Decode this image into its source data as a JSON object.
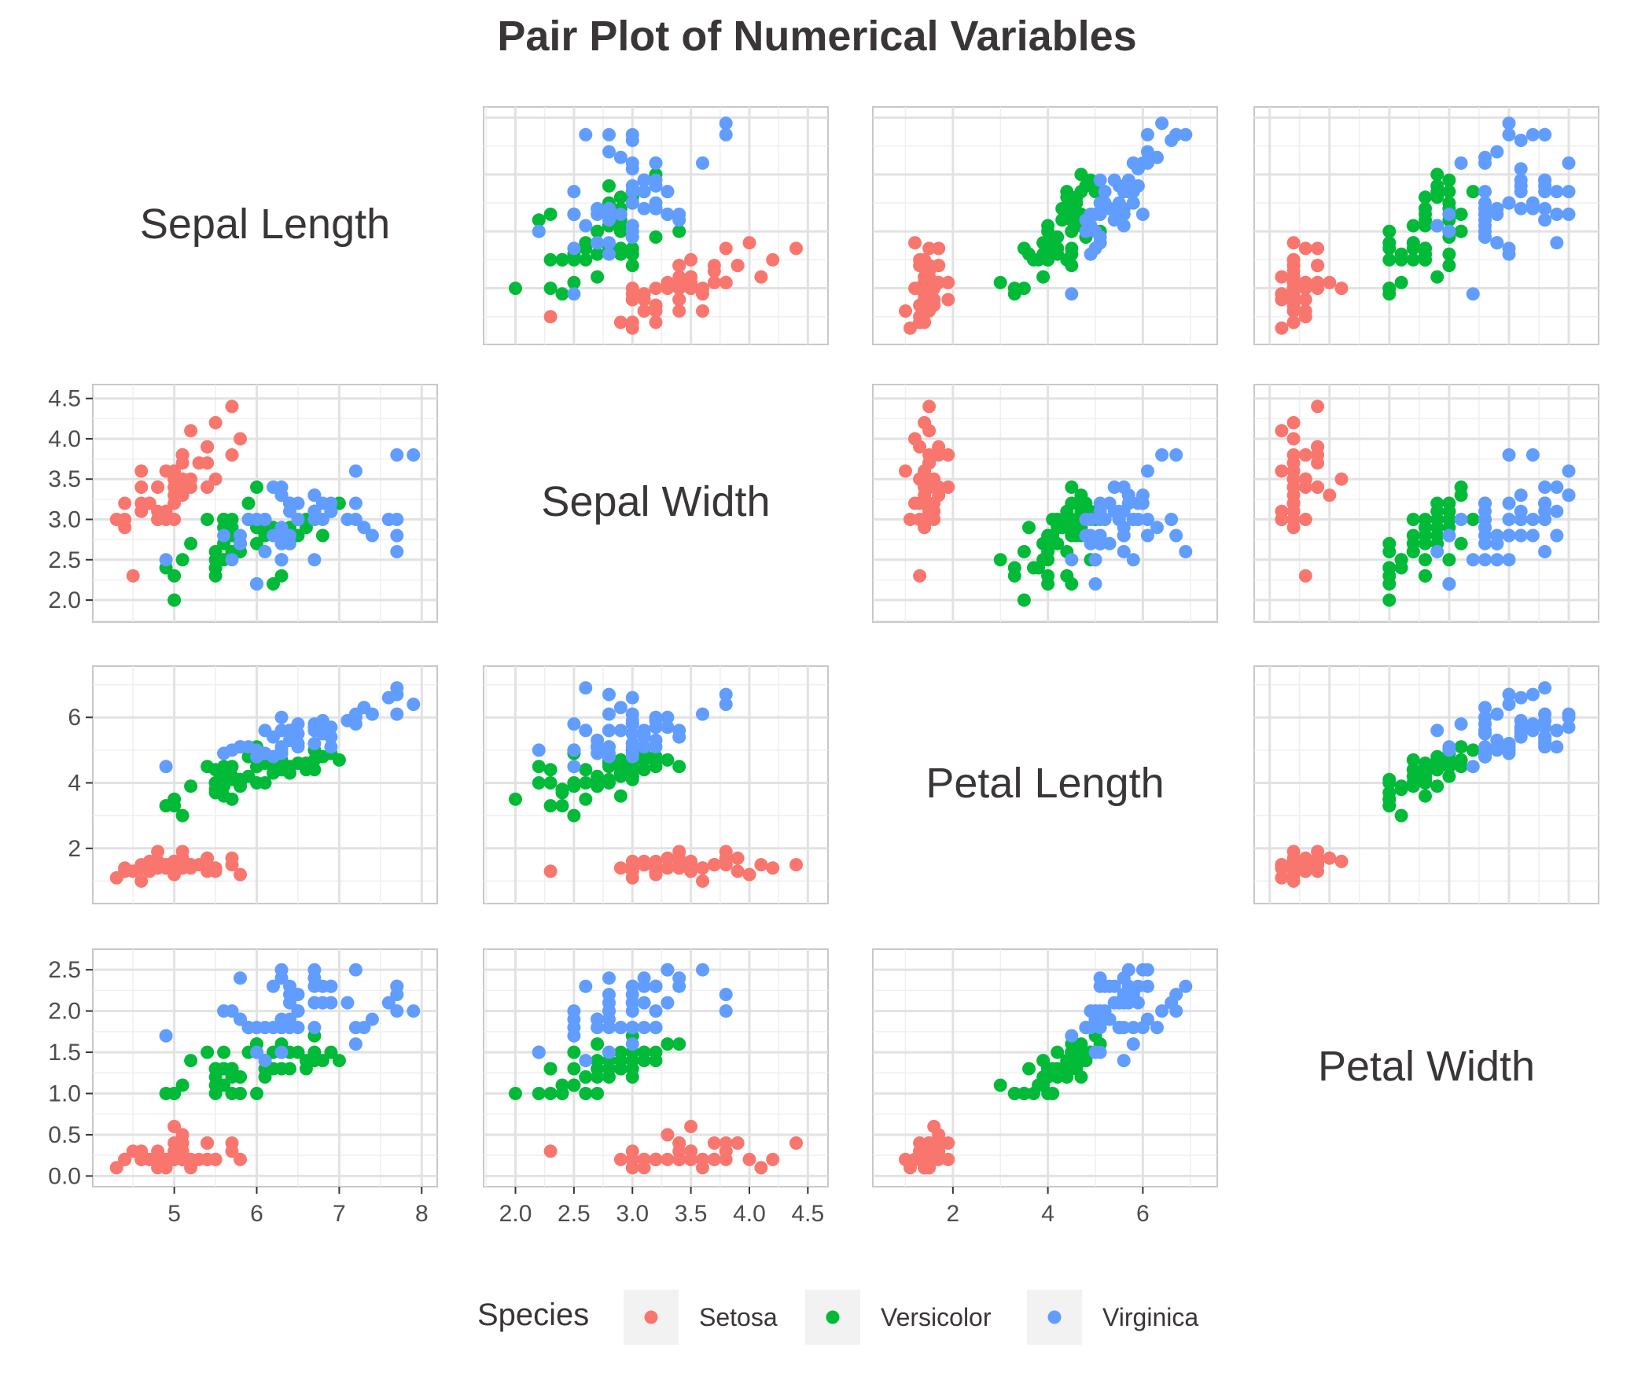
{
  "chart_data": {
    "type": "scatter",
    "title": "Pair Plot of Numerical Variables",
    "variables": [
      {
        "key": "sl",
        "label": "Sepal Length",
        "range": [
          4.2,
          8.0
        ],
        "ticks": [
          5,
          6,
          7,
          8
        ]
      },
      {
        "key": "sw",
        "label": "Sepal Width",
        "range": [
          1.86,
          4.54
        ],
        "ticks": [
          2.0,
          2.5,
          3.0,
          3.5,
          4.0,
          4.5
        ]
      },
      {
        "key": "pl",
        "label": "Petal Length",
        "range": [
          0.64,
          7.24
        ],
        "ticks": [
          2,
          4,
          6
        ]
      },
      {
        "key": "pw",
        "label": "Petal Width",
        "range": [
          0.0,
          2.62
        ],
        "ticks": [
          0.0,
          0.5,
          1.0,
          1.5,
          2.0,
          2.5
        ]
      }
    ],
    "grid": true,
    "legend": {
      "title": "Species",
      "position": "bottom"
    },
    "series": [
      {
        "name": "Setosa",
        "color": "#F8766D",
        "points": [
          [
            5.1,
            3.5,
            1.4,
            0.2
          ],
          [
            4.9,
            3.0,
            1.4,
            0.2
          ],
          [
            4.7,
            3.2,
            1.3,
            0.2
          ],
          [
            4.6,
            3.1,
            1.5,
            0.2
          ],
          [
            5.0,
            3.6,
            1.4,
            0.2
          ],
          [
            5.4,
            3.9,
            1.7,
            0.4
          ],
          [
            4.6,
            3.4,
            1.4,
            0.3
          ],
          [
            5.0,
            3.4,
            1.5,
            0.2
          ],
          [
            4.4,
            2.9,
            1.4,
            0.2
          ],
          [
            4.9,
            3.1,
            1.5,
            0.1
          ],
          [
            5.4,
            3.7,
            1.5,
            0.2
          ],
          [
            4.8,
            3.4,
            1.6,
            0.2
          ],
          [
            4.8,
            3.0,
            1.4,
            0.1
          ],
          [
            4.3,
            3.0,
            1.1,
            0.1
          ],
          [
            5.8,
            4.0,
            1.2,
            0.2
          ],
          [
            5.7,
            4.4,
            1.5,
            0.4
          ],
          [
            5.4,
            3.9,
            1.3,
            0.4
          ],
          [
            5.1,
            3.5,
            1.4,
            0.3
          ],
          [
            5.7,
            3.8,
            1.7,
            0.3
          ],
          [
            5.1,
            3.8,
            1.5,
            0.3
          ],
          [
            5.4,
            3.4,
            1.7,
            0.2
          ],
          [
            5.1,
            3.7,
            1.5,
            0.4
          ],
          [
            4.6,
            3.6,
            1.0,
            0.2
          ],
          [
            5.1,
            3.3,
            1.7,
            0.5
          ],
          [
            4.8,
            3.4,
            1.9,
            0.2
          ],
          [
            5.0,
            3.0,
            1.6,
            0.2
          ],
          [
            5.0,
            3.4,
            1.6,
            0.4
          ],
          [
            5.2,
            3.5,
            1.5,
            0.2
          ],
          [
            5.2,
            3.4,
            1.4,
            0.2
          ],
          [
            4.7,
            3.2,
            1.6,
            0.2
          ],
          [
            4.8,
            3.1,
            1.6,
            0.2
          ],
          [
            5.4,
            3.4,
            1.5,
            0.4
          ],
          [
            5.2,
            4.1,
            1.5,
            0.1
          ],
          [
            5.5,
            4.2,
            1.4,
            0.2
          ],
          [
            4.9,
            3.1,
            1.5,
            0.2
          ],
          [
            5.0,
            3.2,
            1.2,
            0.2
          ],
          [
            5.5,
            3.5,
            1.3,
            0.2
          ],
          [
            4.9,
            3.6,
            1.4,
            0.1
          ],
          [
            4.4,
            3.0,
            1.3,
            0.2
          ],
          [
            5.1,
            3.4,
            1.5,
            0.2
          ],
          [
            5.0,
            3.5,
            1.3,
            0.3
          ],
          [
            4.5,
            2.3,
            1.3,
            0.3
          ],
          [
            4.4,
            3.2,
            1.3,
            0.2
          ],
          [
            5.0,
            3.5,
            1.6,
            0.6
          ],
          [
            5.1,
            3.8,
            1.9,
            0.4
          ],
          [
            4.8,
            3.0,
            1.4,
            0.3
          ],
          [
            5.1,
            3.8,
            1.6,
            0.2
          ],
          [
            4.6,
            3.2,
            1.4,
            0.2
          ],
          [
            5.3,
            3.7,
            1.5,
            0.2
          ],
          [
            5.0,
            3.3,
            1.4,
            0.2
          ]
        ]
      },
      {
        "name": "Versicolor",
        "color": "#00BA38",
        "points": [
          [
            7.0,
            3.2,
            4.7,
            1.4
          ],
          [
            6.4,
            3.2,
            4.5,
            1.5
          ],
          [
            6.9,
            3.1,
            4.9,
            1.5
          ],
          [
            5.5,
            2.3,
            4.0,
            1.3
          ],
          [
            6.5,
            2.8,
            4.6,
            1.5
          ],
          [
            5.7,
            2.8,
            4.5,
            1.3
          ],
          [
            6.3,
            3.3,
            4.7,
            1.6
          ],
          [
            4.9,
            2.4,
            3.3,
            1.0
          ],
          [
            6.6,
            2.9,
            4.6,
            1.3
          ],
          [
            5.2,
            2.7,
            3.9,
            1.4
          ],
          [
            5.0,
            2.0,
            3.5,
            1.0
          ],
          [
            5.9,
            3.0,
            4.2,
            1.5
          ],
          [
            6.0,
            2.2,
            4.0,
            1.0
          ],
          [
            6.1,
            2.9,
            4.7,
            1.4
          ],
          [
            5.6,
            2.9,
            3.6,
            1.3
          ],
          [
            6.7,
            3.1,
            4.4,
            1.4
          ],
          [
            5.6,
            3.0,
            4.5,
            1.5
          ],
          [
            5.8,
            2.7,
            4.1,
            1.0
          ],
          [
            6.2,
            2.2,
            4.5,
            1.5
          ],
          [
            5.6,
            2.5,
            3.9,
            1.1
          ],
          [
            5.9,
            3.2,
            4.8,
            1.8
          ],
          [
            6.1,
            2.8,
            4.0,
            1.3
          ],
          [
            6.3,
            2.5,
            4.9,
            1.5
          ],
          [
            6.1,
            2.8,
            4.7,
            1.2
          ],
          [
            6.4,
            2.9,
            4.3,
            1.3
          ],
          [
            6.6,
            3.0,
            4.4,
            1.4
          ],
          [
            6.8,
            2.8,
            4.8,
            1.4
          ],
          [
            6.7,
            3.0,
            5.0,
            1.7
          ],
          [
            6.0,
            2.9,
            4.5,
            1.5
          ],
          [
            5.7,
            2.6,
            3.5,
            1.0
          ],
          [
            5.5,
            2.4,
            3.8,
            1.1
          ],
          [
            5.5,
            2.4,
            3.7,
            1.0
          ],
          [
            5.8,
            2.7,
            3.9,
            1.2
          ],
          [
            6.0,
            2.7,
            5.1,
            1.6
          ],
          [
            5.4,
            3.0,
            4.5,
            1.5
          ],
          [
            6.0,
            3.4,
            4.5,
            1.6
          ],
          [
            6.7,
            3.1,
            4.7,
            1.5
          ],
          [
            6.3,
            2.3,
            4.4,
            1.3
          ],
          [
            5.6,
            3.0,
            4.1,
            1.3
          ],
          [
            5.5,
            2.5,
            4.0,
            1.3
          ],
          [
            5.5,
            2.6,
            4.4,
            1.2
          ],
          [
            6.1,
            3.0,
            4.6,
            1.4
          ],
          [
            5.8,
            2.6,
            4.0,
            1.2
          ],
          [
            5.0,
            2.3,
            3.3,
            1.0
          ],
          [
            5.6,
            2.7,
            4.2,
            1.3
          ],
          [
            5.7,
            3.0,
            4.2,
            1.2
          ],
          [
            5.7,
            2.9,
            4.2,
            1.3
          ],
          [
            6.2,
            2.9,
            4.3,
            1.3
          ],
          [
            5.1,
            2.5,
            3.0,
            1.1
          ],
          [
            5.7,
            2.8,
            4.1,
            1.3
          ]
        ]
      },
      {
        "name": "Virginica",
        "color": "#619CFF",
        "points": [
          [
            6.3,
            3.3,
            6.0,
            2.5
          ],
          [
            5.8,
            2.7,
            5.1,
            1.9
          ],
          [
            7.1,
            3.0,
            5.9,
            2.1
          ],
          [
            6.3,
            2.9,
            5.6,
            1.8
          ],
          [
            6.5,
            3.0,
            5.8,
            2.2
          ],
          [
            7.6,
            3.0,
            6.6,
            2.1
          ],
          [
            4.9,
            2.5,
            4.5,
            1.7
          ],
          [
            7.3,
            2.9,
            6.3,
            1.8
          ],
          [
            6.7,
            2.5,
            5.8,
            1.8
          ],
          [
            7.2,
            3.6,
            6.1,
            2.5
          ],
          [
            6.5,
            3.2,
            5.1,
            2.0
          ],
          [
            6.4,
            2.7,
            5.3,
            1.9
          ],
          [
            6.8,
            3.0,
            5.5,
            2.1
          ],
          [
            5.7,
            2.5,
            5.0,
            2.0
          ],
          [
            5.8,
            2.8,
            5.1,
            2.4
          ],
          [
            6.4,
            3.2,
            5.3,
            2.3
          ],
          [
            6.5,
            3.0,
            5.5,
            1.8
          ],
          [
            7.7,
            3.8,
            6.7,
            2.2
          ],
          [
            7.7,
            2.6,
            6.9,
            2.3
          ],
          [
            6.0,
            2.2,
            5.0,
            1.5
          ],
          [
            6.9,
            3.2,
            5.7,
            2.3
          ],
          [
            5.6,
            2.8,
            4.9,
            2.0
          ],
          [
            7.7,
            2.8,
            6.7,
            2.0
          ],
          [
            6.3,
            2.7,
            4.9,
            1.8
          ],
          [
            6.7,
            3.3,
            5.7,
            2.1
          ],
          [
            7.2,
            3.2,
            6.0,
            1.8
          ],
          [
            6.2,
            2.8,
            4.8,
            1.8
          ],
          [
            6.1,
            3.0,
            4.9,
            1.8
          ],
          [
            6.4,
            2.8,
            5.6,
            2.1
          ],
          [
            7.2,
            3.0,
            5.8,
            1.6
          ],
          [
            7.4,
            2.8,
            6.1,
            1.9
          ],
          [
            7.9,
            3.8,
            6.4,
            2.0
          ],
          [
            6.4,
            2.8,
            5.6,
            2.2
          ],
          [
            6.3,
            2.8,
            5.1,
            1.5
          ],
          [
            6.1,
            2.6,
            5.6,
            1.4
          ],
          [
            7.7,
            3.0,
            6.1,
            2.3
          ],
          [
            6.3,
            3.4,
            5.6,
            2.4
          ],
          [
            6.4,
            3.1,
            5.5,
            1.8
          ],
          [
            6.0,
            3.0,
            4.8,
            1.8
          ],
          [
            6.9,
            3.1,
            5.4,
            2.1
          ],
          [
            6.7,
            3.1,
            5.6,
            2.4
          ],
          [
            6.9,
            3.1,
            5.1,
            2.3
          ],
          [
            5.8,
            2.7,
            5.1,
            1.9
          ],
          [
            6.8,
            3.2,
            5.9,
            2.3
          ],
          [
            6.7,
            3.3,
            5.7,
            2.5
          ],
          [
            6.7,
            3.0,
            5.2,
            2.3
          ],
          [
            6.3,
            2.5,
            5.0,
            1.9
          ],
          [
            6.5,
            3.0,
            5.2,
            2.0
          ],
          [
            6.2,
            3.4,
            5.4,
            2.3
          ],
          [
            5.9,
            3.0,
            5.1,
            1.8
          ]
        ]
      }
    ]
  }
}
